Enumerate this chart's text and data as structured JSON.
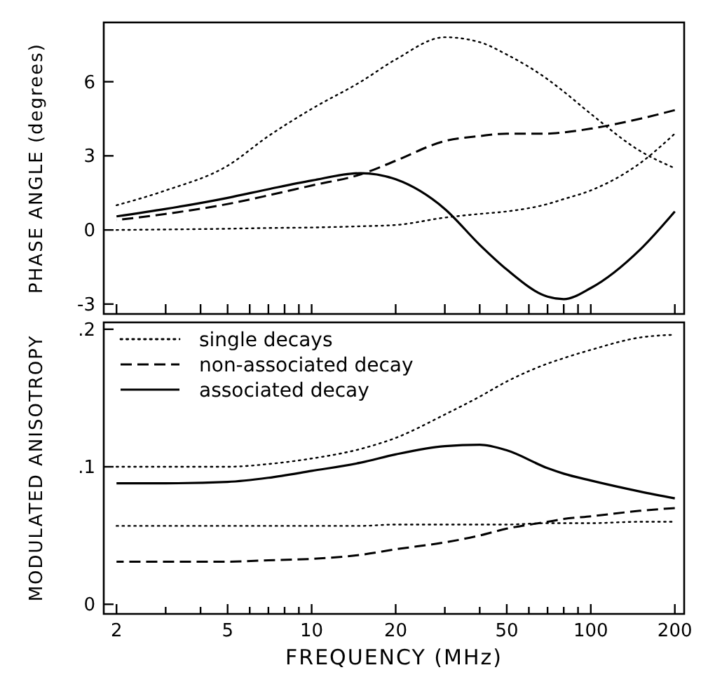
{
  "chart_data": [
    {
      "type": "line",
      "ylabel": "PHASE ANGLE (degrees)",
      "log": "x",
      "xlim": [
        1.8,
        216
      ],
      "ylim": [
        -3.4,
        8.4
      ],
      "tick_labels": "y",
      "legend": false,
      "grid": false,
      "xticks": [
        {
          "value": 2,
          "label": null
        },
        {
          "value": 3,
          "label": null
        },
        {
          "value": 4,
          "label": null
        },
        {
          "value": 5,
          "label": null
        },
        {
          "value": 6,
          "label": null
        },
        {
          "value": 7,
          "label": null
        },
        {
          "value": 8,
          "label": null
        },
        {
          "value": 9,
          "label": null
        },
        {
          "value": 10,
          "label": null
        },
        {
          "value": 20,
          "label": null
        },
        {
          "value": 30,
          "label": null
        },
        {
          "value": 40,
          "label": null
        },
        {
          "value": 50,
          "label": null
        },
        {
          "value": 60,
          "label": null
        },
        {
          "value": 70,
          "label": null
        },
        {
          "value": 80,
          "label": null
        },
        {
          "value": 90,
          "label": null
        },
        {
          "value": 100,
          "label": null
        },
        {
          "value": 200,
          "label": null
        }
      ],
      "yticks": [
        -3,
        0,
        3,
        6
      ],
      "x": [
        2,
        3,
        5,
        7,
        10,
        15,
        20,
        30,
        40,
        50,
        70,
        80,
        100,
        150,
        200
      ],
      "series": [
        {
          "color": "#000000",
          "line_style": "dotted",
          "values": [
            1.0,
            1.6,
            2.6,
            3.8,
            4.9,
            6.0,
            6.9,
            7.8,
            7.6,
            7.1,
            6.1,
            5.6,
            4.7,
            3.2,
            2.5
          ]
        },
        {
          "color": "#000000",
          "line_style": "dotted",
          "values": [
            0.0,
            0.02,
            0.05,
            0.08,
            0.1,
            0.15,
            0.2,
            0.5,
            0.65,
            0.75,
            1.05,
            1.25,
            1.6,
            2.7,
            3.9
          ]
        },
        {
          "color": "#000000",
          "line_style": "dashed",
          "values": [
            0.4,
            0.65,
            1.05,
            1.4,
            1.8,
            2.25,
            2.8,
            3.6,
            3.8,
            3.9,
            3.9,
            3.95,
            4.1,
            4.5,
            4.85
          ]
        },
        {
          "color": "#000000",
          "line_style": "solid",
          "values": [
            0.55,
            0.85,
            1.3,
            1.65,
            2.0,
            2.3,
            2.05,
            0.85,
            -0.6,
            -1.6,
            -2.7,
            -2.8,
            -2.35,
            -0.8,
            0.75
          ]
        }
      ]
    },
    {
      "type": "line",
      "ylabel": "MODULATED ANISOTROPY",
      "xlabel": "FREQUENCY (MHz)",
      "log": "x",
      "xlim": [
        1.8,
        216
      ],
      "ylim": [
        -0.007,
        0.205
      ],
      "legend": "top left",
      "grid": false,
      "xticks": [
        2,
        {
          "value": 3,
          "label": null
        },
        {
          "value": 4,
          "label": null
        },
        5,
        {
          "value": 6,
          "label": null
        },
        {
          "value": 7,
          "label": null
        },
        {
          "value": 8,
          "label": null
        },
        {
          "value": 9,
          "label": null
        },
        10,
        20,
        {
          "value": 30,
          "label": null
        },
        {
          "value": 40,
          "label": null
        },
        50,
        {
          "value": 60,
          "label": null
        },
        {
          "value": 70,
          "label": null
        },
        {
          "value": 80,
          "label": null
        },
        {
          "value": 90,
          "label": null
        },
        100,
        200
      ],
      "yticks": [
        0,
        {
          "value": 0.1,
          "label": ".1"
        },
        {
          "value": 0.2,
          "label": ".2"
        }
      ],
      "x": [
        2,
        3,
        5,
        7,
        10,
        15,
        20,
        30,
        40,
        50,
        70,
        80,
        100,
        150,
        200
      ],
      "series": [
        {
          "name": "single decays",
          "color": "#000000",
          "line_style": "dotted",
          "values": [
            0.1,
            0.1,
            0.1,
            0.102,
            0.106,
            0.113,
            0.121,
            0.138,
            0.151,
            0.162,
            0.175,
            0.179,
            0.185,
            0.194,
            0.196
          ]
        },
        {
          "color": "#000000",
          "line_style": "dotted",
          "values": [
            0.057,
            0.057,
            0.057,
            0.057,
            0.057,
            0.057,
            0.058,
            0.058,
            0.058,
            0.058,
            0.059,
            0.059,
            0.059,
            0.06,
            0.06
          ]
        },
        {
          "name": "non-associated decay",
          "color": "#000000",
          "line_style": "dashed",
          "values": [
            0.031,
            0.031,
            0.031,
            0.032,
            0.033,
            0.036,
            0.04,
            0.045,
            0.05,
            0.055,
            0.06,
            0.062,
            0.064,
            0.068,
            0.07
          ]
        },
        {
          "name": "associated decay",
          "color": "#000000",
          "line_style": "solid",
          "values": [
            0.088,
            0.088,
            0.089,
            0.092,
            0.097,
            0.103,
            0.109,
            0.115,
            0.116,
            0.112,
            0.099,
            0.095,
            0.09,
            0.082,
            0.077
          ]
        }
      ]
    }
  ]
}
